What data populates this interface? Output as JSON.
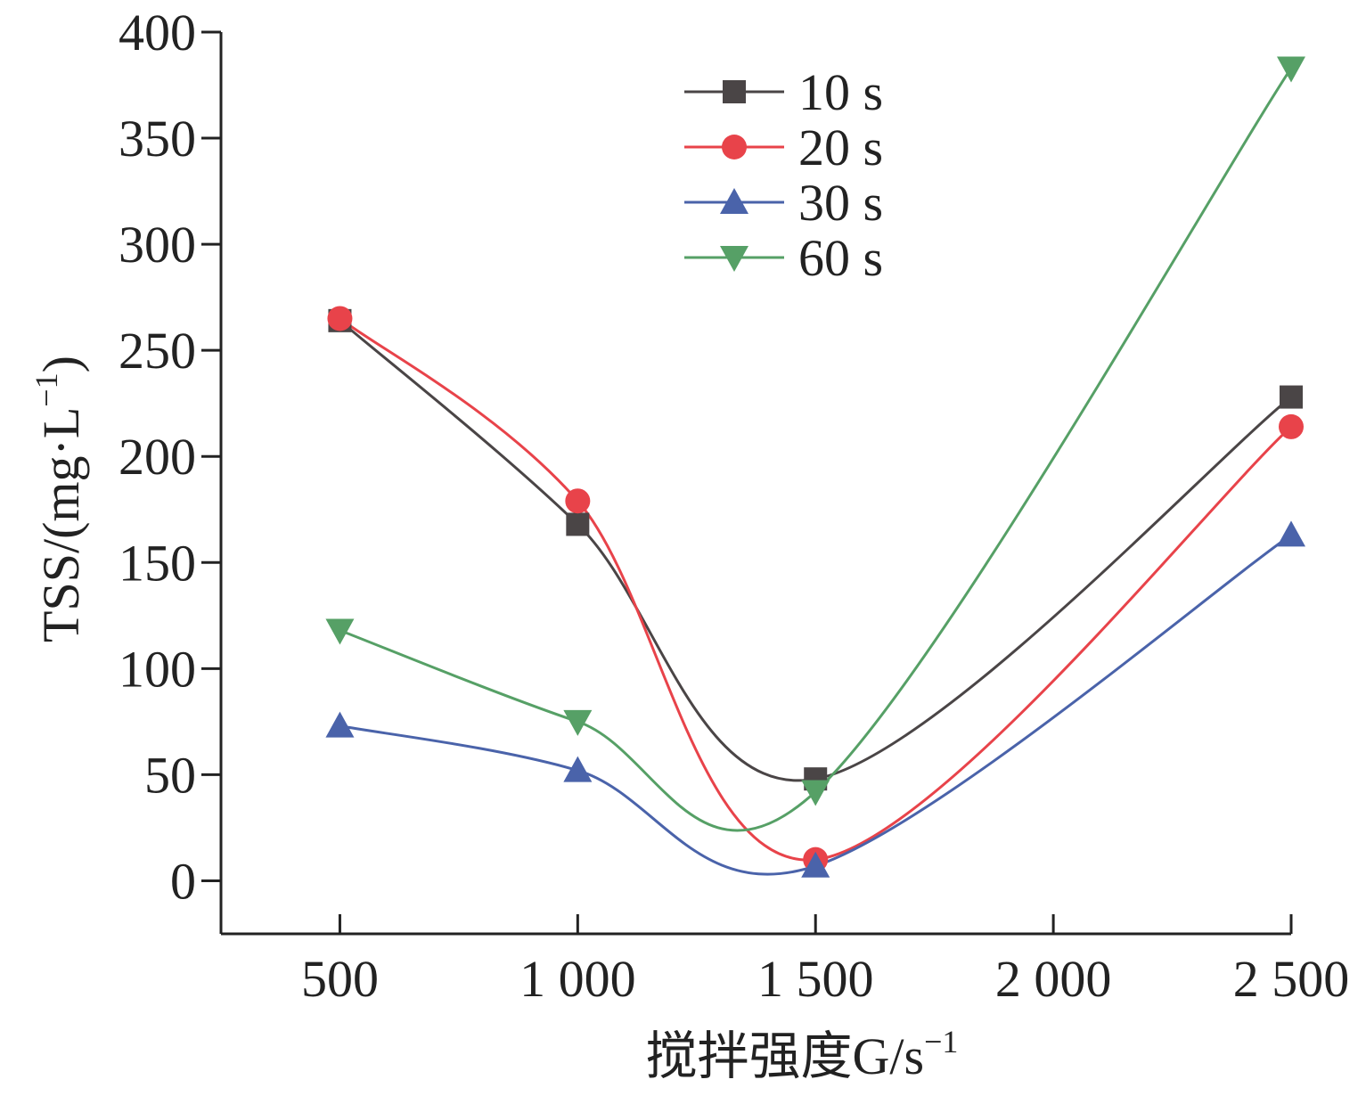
{
  "chart_data": {
    "type": "line",
    "xlabel": "搅拌强度G/s",
    "xlabel_sup": "−1",
    "ylabel": "TSS/(mg·L",
    "ylabel_sup": "−1",
    "ylabel_close": ")",
    "x_ticks": [
      500,
      1000,
      1500,
      2000,
      2500
    ],
    "x_tick_labels": [
      "500",
      "1 000",
      "1 500",
      "2 000",
      "2 500"
    ],
    "y_ticks": [
      0,
      50,
      100,
      150,
      200,
      250,
      300,
      350,
      400
    ],
    "y_tick_labels": [
      "0",
      "50",
      "100",
      "150",
      "200",
      "250",
      "300",
      "350",
      "400"
    ],
    "xlim": [
      250,
      2500
    ],
    "ylim": [
      -25,
      400
    ],
    "grid": false,
    "legend_position": "top-center",
    "x": [
      500,
      1000,
      1500,
      2500
    ],
    "series": [
      {
        "name": "10 s",
        "values": [
          264,
          168,
          48,
          228
        ],
        "color": "#4a4546",
        "marker": "square"
      },
      {
        "name": "20 s",
        "values": [
          265,
          179,
          10,
          214
        ],
        "color": "#e8434a",
        "marker": "circle"
      },
      {
        "name": "30 s",
        "values": [
          73,
          52,
          7,
          163
        ],
        "color": "#4a63aa",
        "marker": "triangle-up"
      },
      {
        "name": "60 s",
        "values": [
          118,
          75,
          42,
          383
        ],
        "color": "#56a066",
        "marker": "triangle-down"
      }
    ]
  }
}
